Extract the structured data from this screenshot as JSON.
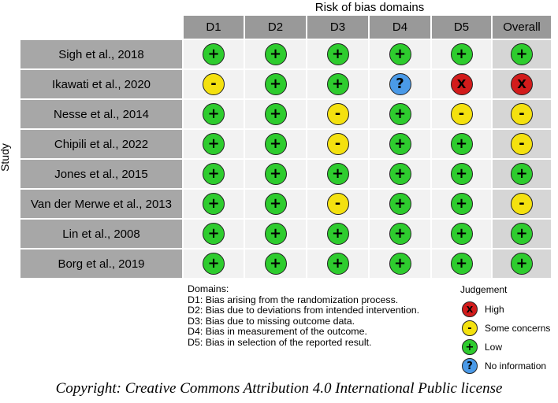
{
  "title": "Risk of bias domains",
  "y_axis_label": "Study",
  "domain_headers": [
    "D1",
    "D2",
    "D3",
    "D4",
    "D5",
    "Overall"
  ],
  "studies": [
    {
      "name": "Sigh et al., 2018",
      "judgements": [
        "low",
        "low",
        "low",
        "low",
        "low",
        "low"
      ]
    },
    {
      "name": "Ikawati et al., 2020",
      "judgements": [
        "some",
        "low",
        "low",
        "noinfo",
        "high",
        "high"
      ]
    },
    {
      "name": "Nesse et al., 2014",
      "judgements": [
        "low",
        "low",
        "some",
        "low",
        "some",
        "some"
      ]
    },
    {
      "name": "Chipili et al., 2022",
      "judgements": [
        "low",
        "low",
        "some",
        "low",
        "low",
        "some"
      ]
    },
    {
      "name": "Jones et al., 2015",
      "judgements": [
        "low",
        "low",
        "low",
        "low",
        "low",
        "low"
      ]
    },
    {
      "name": "Van der Merwe et al., 2013",
      "judgements": [
        "low",
        "low",
        "some",
        "low",
        "low",
        "some"
      ]
    },
    {
      "name": "Lin et al., 2008",
      "judgements": [
        "low",
        "low",
        "low",
        "low",
        "low",
        "low"
      ]
    },
    {
      "name": "Borg et al., 2019",
      "judgements": [
        "low",
        "low",
        "low",
        "low",
        "low",
        "low"
      ]
    }
  ],
  "symbols": {
    "low": "+",
    "some": "-",
    "high": "X",
    "noinfo": "?"
  },
  "colors": {
    "low": "#2ecc2e",
    "some": "#f4e10f",
    "high": "#d21b1b",
    "noinfo": "#4a9ae8"
  },
  "domains_legend": {
    "heading": "Domains:",
    "items": [
      "D1: Bias arising from the randomization process.",
      "D2: Bias due to deviations from intended intervention.",
      "D3: Bias due to missing outcome data.",
      "D4: Bias in measurement of the outcome.",
      "D5: Bias in selection of the reported result."
    ]
  },
  "judgement_legend": {
    "title": "Judgement",
    "items": [
      {
        "key": "high",
        "label": "High"
      },
      {
        "key": "some",
        "label": "Some concerns"
      },
      {
        "key": "low",
        "label": "Low"
      },
      {
        "key": "noinfo",
        "label": "No information"
      }
    ]
  },
  "copyright": "Copyright: Creative Commons Attribution 4.0 International Public license"
}
